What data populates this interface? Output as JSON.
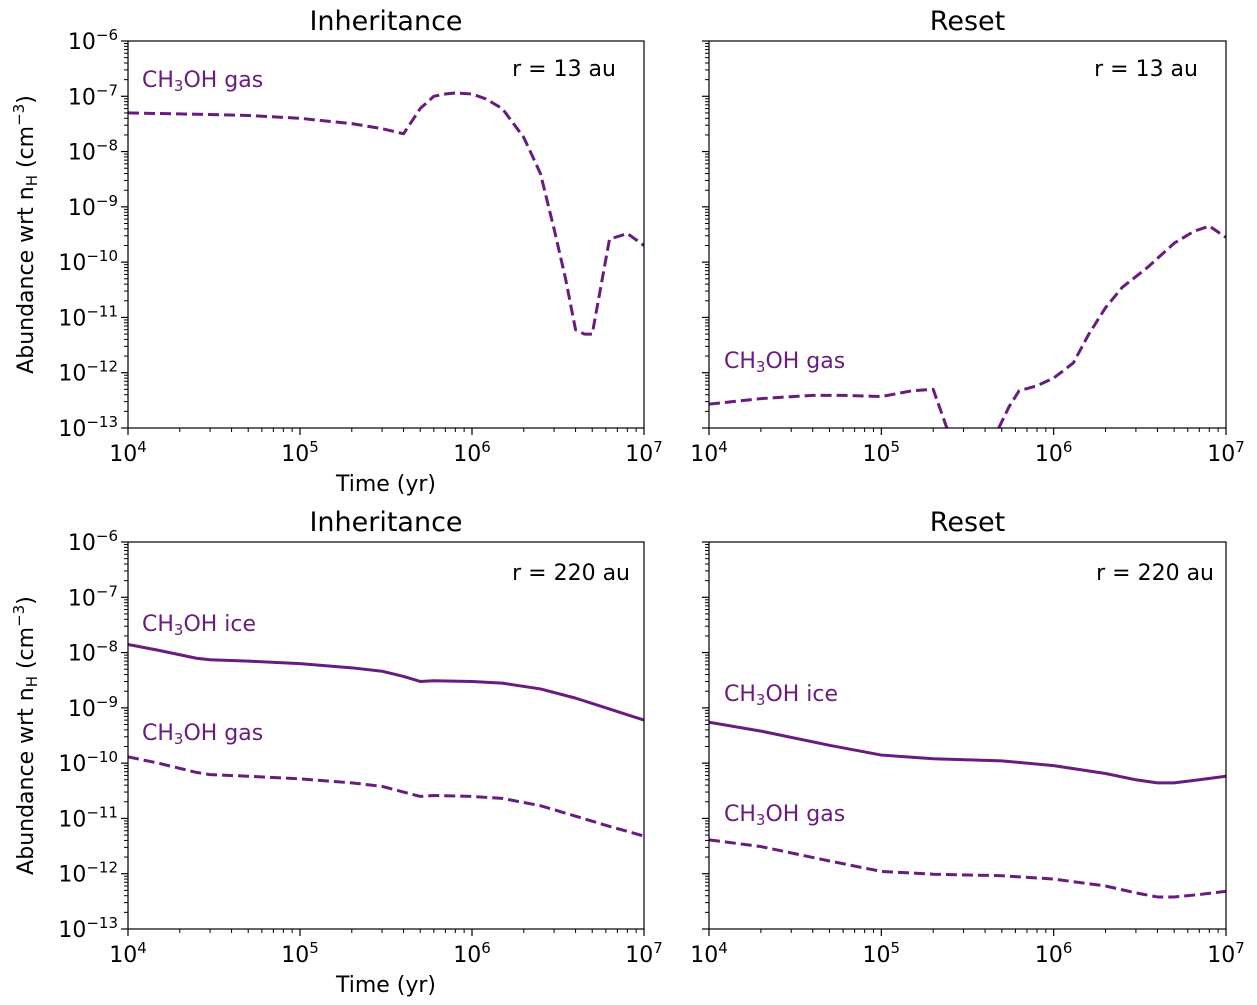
{
  "line_color": "#6a1b7f",
  "chart_data": [
    {
      "type": "line",
      "title": "Inheritance",
      "annotation": "r = 13 au",
      "xlabel": "Time (yr)",
      "ylabel": {
        "main": "Abundance wrt n",
        "sub": "H",
        "unit_open": " (cm",
        "unit_sup": "−3",
        "unit_close": ")"
      },
      "xscale": "log",
      "yscale": "log",
      "xlim": [
        10000,
        10000000
      ],
      "ylim": [
        1e-13,
        1e-06
      ],
      "xticks": [
        {
          "base": "10",
          "exp": "4"
        },
        {
          "base": "10",
          "exp": "5"
        },
        {
          "base": "10",
          "exp": "6"
        },
        {
          "base": "10",
          "exp": "7"
        }
      ],
      "yticks": [
        {
          "base": "10",
          "exp": "−6"
        },
        {
          "base": "10",
          "exp": "−7"
        },
        {
          "base": "10",
          "exp": "−8"
        },
        {
          "base": "10",
          "exp": "−9"
        },
        {
          "base": "10",
          "exp": "−10"
        },
        {
          "base": "10",
          "exp": "−11"
        },
        {
          "base": "10",
          "exp": "−12"
        },
        {
          "base": "10",
          "exp": "−13"
        }
      ],
      "series": [
        {
          "name": "CH3OH gas",
          "label": {
            "pre": "CH",
            "sub": "3",
            "post": "OH gas"
          },
          "style": "dashed",
          "x": [
            10000,
            20000,
            50000,
            100000,
            200000,
            300000,
            400000,
            500000,
            600000,
            700000,
            800000,
            1000000,
            1200000,
            1500000,
            2000000,
            2500000,
            3000000,
            3500000,
            4000000,
            4500000,
            5000000,
            6300000,
            8000000,
            10000000
          ],
          "y": [
            5e-08,
            4.8e-08,
            4.5e-08,
            4e-08,
            3.2e-08,
            2.6e-08,
            2.1e-08,
            6e-08,
            1e-07,
            1.1e-07,
            1.15e-07,
            1.1e-07,
            9e-08,
            6e-08,
            1.8e-08,
            4e-09,
            4e-10,
            5e-11,
            6e-12,
            5e-12,
            5e-12,
            2.6e-10,
            3.3e-10,
            2e-10
          ]
        }
      ]
    },
    {
      "type": "line",
      "title": "Reset",
      "annotation": "r = 13 au",
      "xscale": "log",
      "yscale": "log",
      "xlim": [
        10000,
        10000000
      ],
      "ylim": [
        1e-13,
        1e-06
      ],
      "xticks": [
        {
          "base": "10",
          "exp": "4"
        },
        {
          "base": "10",
          "exp": "5"
        },
        {
          "base": "10",
          "exp": "6"
        },
        {
          "base": "10",
          "exp": "7"
        }
      ],
      "series": [
        {
          "name": "CH3OH gas",
          "label": {
            "pre": "CH",
            "sub": "3",
            "post": "OH gas"
          },
          "style": "dashed",
          "segments": [
            {
              "x": [
                10000,
                20000,
                40000,
                60000,
                100000,
                150000,
                200000,
                240000
              ],
              "y": [
                2.7e-13,
                3.4e-13,
                3.9e-13,
                3.9e-13,
                3.7e-13,
                4.7e-13,
                5e-13,
                1e-13
              ]
            },
            {
              "x": [
                480000,
                550000,
                630000,
                800000,
                1000000,
                1300000,
                1600000,
                2000000,
                2500000,
                3500000,
                5000000,
                6500000,
                8000000,
                10000000
              ],
              "y": [
                1e-13,
                2.4e-13,
                4.7e-13,
                5.8e-13,
                8e-13,
                1.5e-12,
                5e-12,
                1.5e-11,
                3.5e-11,
                8e-11,
                2.2e-10,
                3.6e-10,
                4.5e-10,
                2.8e-10
              ]
            }
          ]
        }
      ]
    },
    {
      "type": "line",
      "title": "Inheritance",
      "annotation": "r = 220 au",
      "xlabel": "Time (yr)",
      "ylabel": {
        "main": "Abundance wrt n",
        "sub": "H",
        "unit_open": " (cm",
        "unit_sup": "−3",
        "unit_close": ")"
      },
      "xscale": "log",
      "yscale": "log",
      "xlim": [
        10000,
        10000000
      ],
      "ylim": [
        1e-13,
        1e-06
      ],
      "xticks": [
        {
          "base": "10",
          "exp": "4"
        },
        {
          "base": "10",
          "exp": "5"
        },
        {
          "base": "10",
          "exp": "6"
        },
        {
          "base": "10",
          "exp": "7"
        }
      ],
      "yticks": [
        {
          "base": "10",
          "exp": "−6"
        },
        {
          "base": "10",
          "exp": "−7"
        },
        {
          "base": "10",
          "exp": "−8"
        },
        {
          "base": "10",
          "exp": "−9"
        },
        {
          "base": "10",
          "exp": "−10"
        },
        {
          "base": "10",
          "exp": "−11"
        },
        {
          "base": "10",
          "exp": "−12"
        },
        {
          "base": "10",
          "exp": "−13"
        }
      ],
      "series": [
        {
          "name": "CH3OH ice",
          "label": {
            "pre": "CH",
            "sub": "3",
            "post": "OH ice"
          },
          "style": "solid",
          "x": [
            10000,
            15000,
            25000,
            30000,
            50000,
            100000,
            200000,
            300000,
            400000,
            500000,
            600000,
            1000000,
            1500000,
            2500000,
            4000000,
            6000000,
            10000000
          ],
          "y": [
            1.4e-08,
            1.1e-08,
            7.9e-09,
            7.4e-09,
            7e-09,
            6.3e-09,
            5.3e-09,
            4.6e-09,
            3.7e-09,
            3e-09,
            3.1e-09,
            3e-09,
            2.8e-09,
            2.2e-09,
            1.5e-09,
            1e-09,
            6e-10
          ]
        },
        {
          "name": "CH3OH gas",
          "label": {
            "pre": "CH",
            "sub": "3",
            "post": "OH gas"
          },
          "style": "dashed",
          "x": [
            10000,
            15000,
            25000,
            30000,
            50000,
            100000,
            200000,
            300000,
            400000,
            500000,
            600000,
            1000000,
            1500000,
            2500000,
            4000000,
            6000000,
            10000000
          ],
          "y": [
            1.3e-10,
            1e-10,
            6.8e-11,
            6.2e-11,
            5.8e-11,
            5.2e-11,
            4.4e-11,
            3.8e-11,
            3e-11,
            2.5e-11,
            2.6e-11,
            2.5e-11,
            2.3e-11,
            1.7e-11,
            1.1e-11,
            7.5e-12,
            4.8e-12
          ]
        }
      ]
    },
    {
      "type": "line",
      "title": "Reset",
      "annotation": "r = 220 au",
      "xscale": "log",
      "yscale": "log",
      "xlim": [
        10000,
        10000000
      ],
      "ylim": [
        1e-13,
        1e-06
      ],
      "xticks": [
        {
          "base": "10",
          "exp": "4"
        },
        {
          "base": "10",
          "exp": "5"
        },
        {
          "base": "10",
          "exp": "6"
        },
        {
          "base": "10",
          "exp": "7"
        }
      ],
      "series": [
        {
          "name": "CH3OH ice",
          "label": {
            "pre": "CH",
            "sub": "3",
            "post": "OH ice"
          },
          "style": "solid",
          "x": [
            10000,
            20000,
            50000,
            100000,
            200000,
            500000,
            1000000,
            2000000,
            3000000,
            4000000,
            5000000,
            7000000,
            10000000
          ],
          "y": [
            5.5e-10,
            3.8e-10,
            2.1e-10,
            1.4e-10,
            1.2e-10,
            1.1e-10,
            9e-11,
            6.5e-11,
            5e-11,
            4.4e-11,
            4.4e-11,
            5e-11,
            5.8e-11
          ]
        },
        {
          "name": "CH3OH gas",
          "label": {
            "pre": "CH",
            "sub": "3",
            "post": "OH gas"
          },
          "style": "dashed",
          "x": [
            10000,
            20000,
            50000,
            100000,
            200000,
            500000,
            1000000,
            2000000,
            3000000,
            4000000,
            5000000,
            7000000,
            10000000
          ],
          "y": [
            4.1e-12,
            3.1e-12,
            1.7e-12,
            1.1e-12,
            9.8e-13,
            9.2e-13,
            8e-13,
            6e-13,
            4.5e-13,
            3.8e-13,
            3.8e-13,
            4.2e-13,
            4.8e-13
          ]
        }
      ]
    }
  ]
}
